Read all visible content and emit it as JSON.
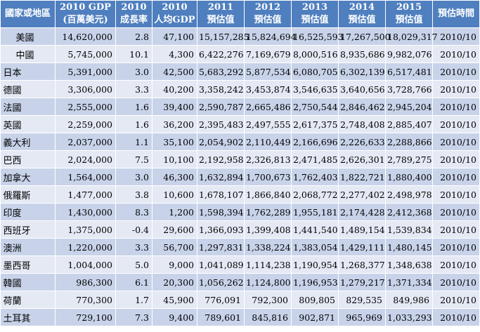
{
  "colors": {
    "header_bg": "#4f7fbf",
    "row_odd": "#c8d3ea",
    "row_even": "#e4e9f4"
  },
  "headers": [
    "國家或地區",
    "2010 GDP\n(百萬美元)",
    "2010\n成長率",
    "2010\n人均GDP",
    "2011\n預估值",
    "2012\n預估值",
    "2013\n預估值",
    "2014\n預估值",
    "2015\n預估值",
    "預估時間"
  ],
  "rows": [
    [
      "美國",
      "14,620,000",
      "2.8",
      "47,100",
      "15,157,285",
      "15,824,694",
      "16,525,593",
      "17,267,500",
      "18,029,317",
      "2010/10"
    ],
    [
      "中國",
      "5,745,000",
      "10.1",
      "4,300",
      "6,422,276",
      "7,169,679",
      "8,000,516",
      "8,935,686",
      "9,982,076",
      "2010/10"
    ],
    [
      "日本",
      "5,391,000",
      "3.0",
      "42,500",
      "5,683,292",
      "5,877,534",
      "6,080,705",
      "6,302,139",
      "6,517,481",
      "2010/10"
    ],
    [
      "德國",
      "3,306,000",
      "3.3",
      "40,200",
      "3,358,242",
      "3,453,874",
      "3,546,635",
      "3,640,656",
      "3,728,766",
      "2010/10"
    ],
    [
      "法國",
      "2,555,000",
      "1.6",
      "39,400",
      "2,590,787",
      "2,665,486",
      "2,750,544",
      "2,846,462",
      "2,945,204",
      "2010/10"
    ],
    [
      "英國",
      "2,259,000",
      "1.6",
      "36,200",
      "2,395,483",
      "2,497,555",
      "2,617,375",
      "2,748,408",
      "2,885,407",
      "2010/10"
    ],
    [
      "義大利",
      "2,037,000",
      "1.1",
      "35,100",
      "2,054,902",
      "2,110,449",
      "2,166,696",
      "2,226,633",
      "2,288,866",
      "2010/10"
    ],
    [
      "巴西",
      "2,024,000",
      "7.5",
      "10,100",
      "2,192,958",
      "2,326,813",
      "2,471,485",
      "2,626,301",
      "2,789,275",
      "2010/10"
    ],
    [
      "加拿大",
      "1,564,000",
      "3.0",
      "46,300",
      "1,632,894",
      "1,700,673",
      "1,762,403",
      "1,822,721",
      "1,880,400",
      "2010/10"
    ],
    [
      "俄羅斯",
      "1,477,000",
      "3.8",
      "10,600",
      "1,678,107",
      "1,866,840",
      "2,068,772",
      "2,277,402",
      "2,498,978",
      "2010/10"
    ],
    [
      "印度",
      "1,430,000",
      "8.3",
      "1,200",
      "1,598,394",
      "1,762,289",
      "1,955,181",
      "2,174,428",
      "2,412,368",
      "2010/10"
    ],
    [
      "西班牙",
      "1,375,000",
      "-0.4",
      "29,600",
      "1,366,093",
      "1,399,408",
      "1,441,540",
      "1,489,154",
      "1,539,834",
      "2010/10"
    ],
    [
      "澳洲",
      "1,220,000",
      "3.3",
      "56,700",
      "1,297,831",
      "1,338,224",
      "1,383,054",
      "1,429,111",
      "1,480,145",
      "2010/10"
    ],
    [
      "墨西哥",
      "1,004,000",
      "5.0",
      "9,000",
      "1,041,089",
      "1,114,238",
      "1,190,954",
      "1,268,377",
      "1,348,638",
      "2010/10"
    ],
    [
      "韓國",
      "986,300",
      "6.1",
      "20,300",
      "1,056,262",
      "1,124,800",
      "1,196,953",
      "1,279,217",
      "1,371,334",
      "2010/10"
    ],
    [
      "荷蘭",
      "770,300",
      "1.7",
      "45,900",
      "776,091",
      "792,300",
      "809,805",
      "829,535",
      "849,986",
      "2010/10"
    ],
    [
      "土耳其",
      "729,100",
      "7.3",
      "9,400",
      "789,601",
      "845,816",
      "902,871",
      "965,969",
      "1,033,293",
      "2010/10"
    ]
  ]
}
